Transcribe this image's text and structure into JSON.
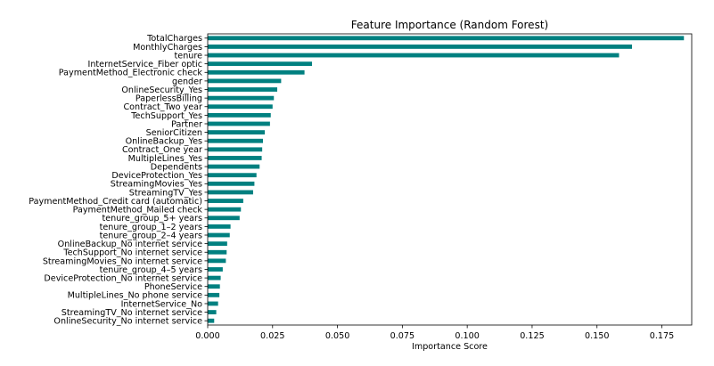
{
  "chart_data": {
    "type": "bar",
    "orientation": "horizontal",
    "title": "Feature Importance (Random Forest)",
    "xlabel": "Importance Score",
    "ylabel": "",
    "xlim": [
      0,
      0.1865
    ],
    "xticks": [
      0.0,
      0.025,
      0.05,
      0.075,
      0.1,
      0.125,
      0.15,
      0.175
    ],
    "xtick_labels": [
      "0.000",
      "0.025",
      "0.050",
      "0.075",
      "0.100",
      "0.125",
      "0.150",
      "0.175"
    ],
    "grid": false,
    "bar_color": "#008080",
    "categories": [
      "TotalCharges",
      "MonthlyCharges",
      "tenure",
      "InternetService_Fiber optic",
      "PaymentMethod_Electronic check",
      "gender",
      "OnlineSecurity_Yes",
      "PaperlessBilling",
      "Contract_Two year",
      "TechSupport_Yes",
      "Partner",
      "SeniorCitizen",
      "OnlineBackup_Yes",
      "Contract_One year",
      "MultipleLines_Yes",
      "Dependents",
      "DeviceProtection_Yes",
      "StreamingMovies_Yes",
      "StreamingTV_Yes",
      "PaymentMethod_Credit card (automatic)",
      "PaymentMethod_Mailed check",
      "tenure_group_5+ years",
      "tenure_group_1–2 years",
      "tenure_group_2–4 years",
      "OnlineBackup_No internet service",
      "TechSupport_No internet service",
      "StreamingMovies_No internet service",
      "tenure_group_4–5 years",
      "DeviceProtection_No internet service",
      "PhoneService",
      "MultipleLines_No phone service",
      "InternetService_No",
      "StreamingTV_No internet service",
      "OnlineSecurity_No internet service"
    ],
    "values": [
      0.1835,
      0.1635,
      0.1585,
      0.0402,
      0.0373,
      0.0283,
      0.0268,
      0.0255,
      0.025,
      0.0243,
      0.024,
      0.022,
      0.0213,
      0.021,
      0.0208,
      0.02,
      0.0188,
      0.018,
      0.0175,
      0.0137,
      0.0128,
      0.0123,
      0.0088,
      0.0085,
      0.0075,
      0.0073,
      0.007,
      0.0058,
      0.005,
      0.0047,
      0.0045,
      0.004,
      0.0033,
      0.0025
    ]
  }
}
